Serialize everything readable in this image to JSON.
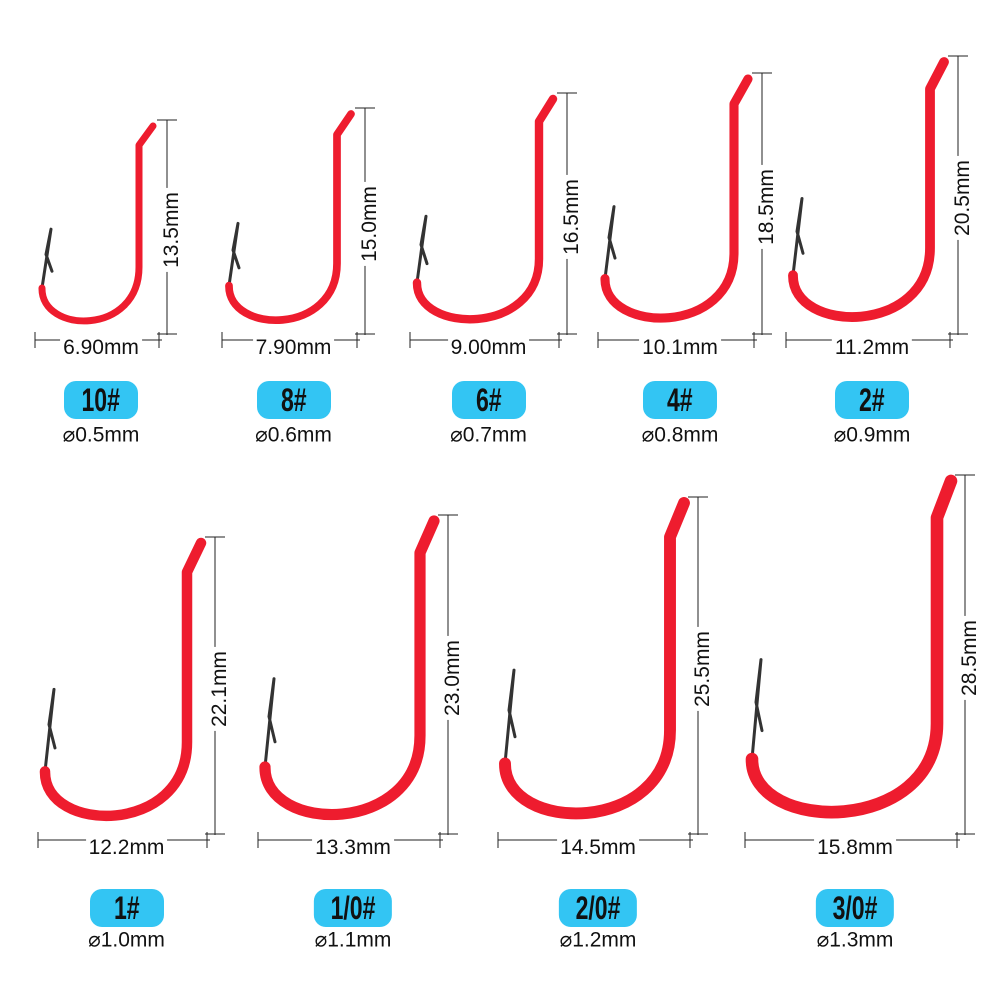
{
  "colors": {
    "hook": "#ee1c2e",
    "badge": "#33c5f3",
    "point": "#333333",
    "dimension_line": "#222222"
  },
  "hooks": [
    {
      "size": "10#",
      "diameter": "⌀0.5mm",
      "length": "13.5mm",
      "width": "6.90mm"
    },
    {
      "size": "8#",
      "diameter": "⌀0.6mm",
      "length": "15.0mm",
      "width": "7.90mm"
    },
    {
      "size": "6#",
      "diameter": "⌀0.7mm",
      "length": "16.5mm",
      "width": "9.00mm"
    },
    {
      "size": "4#",
      "diameter": "⌀0.8mm",
      "length": "18.5mm",
      "width": "10.1mm"
    },
    {
      "size": "2#",
      "diameter": "⌀0.9mm",
      "length": "20.5mm",
      "width": "11.2mm"
    },
    {
      "size": "1#",
      "diameter": "⌀1.0mm",
      "length": "22.1mm",
      "width": "12.2mm"
    },
    {
      "size": "1/0#",
      "diameter": "⌀1.1mm",
      "length": "23.0mm",
      "width": "13.3mm"
    },
    {
      "size": "2/0#",
      "diameter": "⌀1.2mm",
      "length": "25.5mm",
      "width": "14.5mm"
    },
    {
      "size": "3/0#",
      "diameter": "⌀1.3mm",
      "length": "28.5mm",
      "width": "15.8mm"
    }
  ]
}
